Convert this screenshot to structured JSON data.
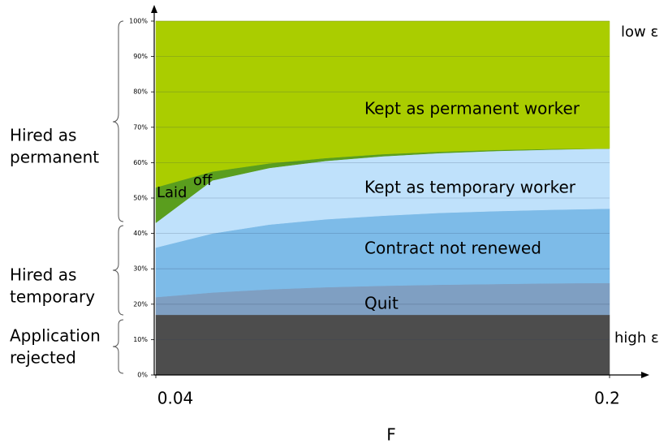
{
  "chart_data": {
    "type": "stacked_area",
    "x_label": "F",
    "x": [
      0.04,
      0.06,
      0.08,
      0.1,
      0.12,
      0.14,
      0.16,
      0.18,
      0.2
    ],
    "series": [
      {
        "color": "#4d4d4d",
        "values": [
          17,
          17,
          17,
          17,
          17,
          17,
          17,
          17,
          17
        ]
      },
      {
        "name": "Quit",
        "color": "#7f9fc2",
        "values": [
          5,
          6.3,
          7.2,
          7.8,
          8.2,
          8.5,
          8.7,
          8.9,
          9
        ]
      },
      {
        "name": "Contract not renewed",
        "color": "#7dbbe8",
        "values": [
          14,
          16.7,
          18.3,
          19.2,
          19.8,
          20.3,
          20.6,
          20.8,
          21
        ]
      },
      {
        "name": "Kept as temporary worker",
        "color": "#bfe1fb",
        "values": [
          7,
          15,
          16,
          16.5,
          16.8,
          16.9,
          17,
          17,
          17
        ]
      },
      {
        "color": "#5a9e1e",
        "values": [
          10,
          2.5,
          1.3,
          0.8,
          0.6,
          0.4,
          0.3,
          0.2,
          0
        ]
      },
      {
        "name": "Kept as permanent worker",
        "color": "#aacd00",
        "values": [
          47,
          42.5,
          40.2,
          38.7,
          37.6,
          36.9,
          36.4,
          36.1,
          36
        ]
      }
    ],
    "annotations": [
      "Laid",
      "off",
      "low ε",
      "high ε"
    ],
    "brace_labels": [
      [
        "Hired as",
        "permanent"
      ],
      [
        "Hired as",
        "temporary"
      ],
      [
        "Application",
        "rejected"
      ]
    ],
    "xlim": [
      0.04,
      0.2
    ],
    "xticks": [
      0.04,
      0.2
    ],
    "ylim": [
      0,
      100
    ],
    "yticks": [
      {
        "value": 0,
        "label": "0%"
      },
      {
        "value": 10,
        "label": "10%"
      },
      {
        "value": 20,
        "label": "20%"
      },
      {
        "value": 30,
        "label": "30%"
      },
      {
        "value": 40,
        "label": "40%"
      },
      {
        "value": 50,
        "label": "50%"
      },
      {
        "value": 60,
        "label": "60%"
      },
      {
        "value": 70,
        "label": "70%"
      },
      {
        "value": 80,
        "label": "80%"
      },
      {
        "value": 90,
        "label": "90%"
      },
      {
        "value": 100,
        "label": "100%"
      }
    ],
    "grid": true
  }
}
